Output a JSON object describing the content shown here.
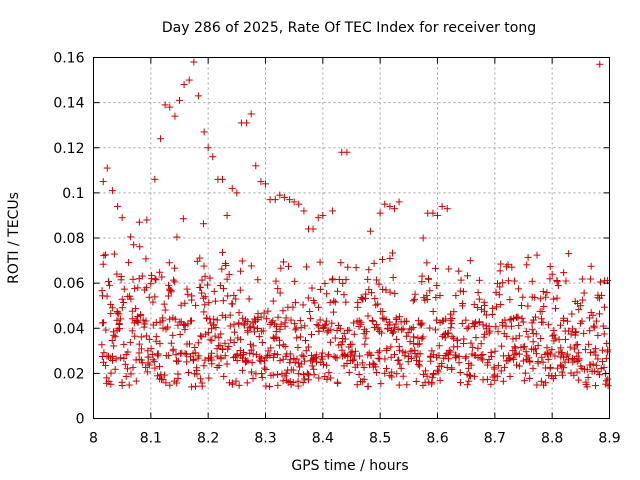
{
  "chart_data": {
    "type": "scatter",
    "title": "Day 286 of 2025, Rate Of TEC Index for receiver tong",
    "xlabel": "GPS time / hours",
    "ylabel": "ROTI / TECUs",
    "xlim": [
      8,
      8.9
    ],
    "ylim": [
      0,
      0.16
    ],
    "xticks": [
      "8",
      "8.1",
      "8.2",
      "8.3",
      "8.4",
      "8.5",
      "8.6",
      "8.7",
      "8.8",
      "8.9"
    ],
    "yticks": [
      "0",
      "0.02",
      "0.04",
      "0.06",
      "0.08",
      "0.1",
      "0.12",
      "0.14",
      "0.16"
    ],
    "grid": true,
    "marker": "+",
    "color": "#cc0000",
    "highlight_points": [
      {
        "x": 8.017,
        "y": 0.105
      },
      {
        "x": 8.024,
        "y": 0.111
      },
      {
        "x": 8.033,
        "y": 0.101
      },
      {
        "x": 8.042,
        "y": 0.094
      },
      {
        "x": 8.05,
        "y": 0.089
      },
      {
        "x": 8.07,
        "y": 0.077
      },
      {
        "x": 8.08,
        "y": 0.087
      },
      {
        "x": 8.093,
        "y": 0.088
      },
      {
        "x": 8.107,
        "y": 0.106
      },
      {
        "x": 8.117,
        "y": 0.124
      },
      {
        "x": 8.125,
        "y": 0.139
      },
      {
        "x": 8.133,
        "y": 0.138
      },
      {
        "x": 8.142,
        "y": 0.134
      },
      {
        "x": 8.15,
        "y": 0.141
      },
      {
        "x": 8.158,
        "y": 0.148
      },
      {
        "x": 8.167,
        "y": 0.15
      },
      {
        "x": 8.175,
        "y": 0.158
      },
      {
        "x": 8.183,
        "y": 0.143
      },
      {
        "x": 8.193,
        "y": 0.127
      },
      {
        "x": 8.2,
        "y": 0.12
      },
      {
        "x": 8.208,
        "y": 0.116
      },
      {
        "x": 8.217,
        "y": 0.106
      },
      {
        "x": 8.225,
        "y": 0.106
      },
      {
        "x": 8.233,
        "y": 0.09
      },
      {
        "x": 8.242,
        "y": 0.102
      },
      {
        "x": 8.25,
        "y": 0.1
      },
      {
        "x": 8.258,
        "y": 0.131
      },
      {
        "x": 8.267,
        "y": 0.131
      },
      {
        "x": 8.275,
        "y": 0.135
      },
      {
        "x": 8.283,
        "y": 0.112
      },
      {
        "x": 8.292,
        "y": 0.105
      },
      {
        "x": 8.3,
        "y": 0.104
      },
      {
        "x": 8.308,
        "y": 0.097
      },
      {
        "x": 8.317,
        "y": 0.097
      },
      {
        "x": 8.325,
        "y": 0.099
      },
      {
        "x": 8.333,
        "y": 0.098
      },
      {
        "x": 8.342,
        "y": 0.097
      },
      {
        "x": 8.35,
        "y": 0.096
      },
      {
        "x": 8.358,
        "y": 0.095
      },
      {
        "x": 8.367,
        "y": 0.092
      },
      {
        "x": 8.375,
        "y": 0.084
      },
      {
        "x": 8.383,
        "y": 0.084
      },
      {
        "x": 8.392,
        "y": 0.089
      },
      {
        "x": 8.4,
        "y": 0.09
      },
      {
        "x": 8.417,
        "y": 0.092
      },
      {
        "x": 8.433,
        "y": 0.118
      },
      {
        "x": 8.442,
        "y": 0.118
      },
      {
        "x": 8.483,
        "y": 0.083
      },
      {
        "x": 8.5,
        "y": 0.091
      },
      {
        "x": 8.508,
        "y": 0.095
      },
      {
        "x": 8.517,
        "y": 0.094
      },
      {
        "x": 8.525,
        "y": 0.093
      },
      {
        "x": 8.533,
        "y": 0.096
      },
      {
        "x": 8.575,
        "y": 0.08
      },
      {
        "x": 8.583,
        "y": 0.091
      },
      {
        "x": 8.592,
        "y": 0.091
      },
      {
        "x": 8.6,
        "y": 0.09
      },
      {
        "x": 8.608,
        "y": 0.094
      },
      {
        "x": 8.617,
        "y": 0.093
      },
      {
        "x": 8.883,
        "y": 0.157
      }
    ]
  }
}
